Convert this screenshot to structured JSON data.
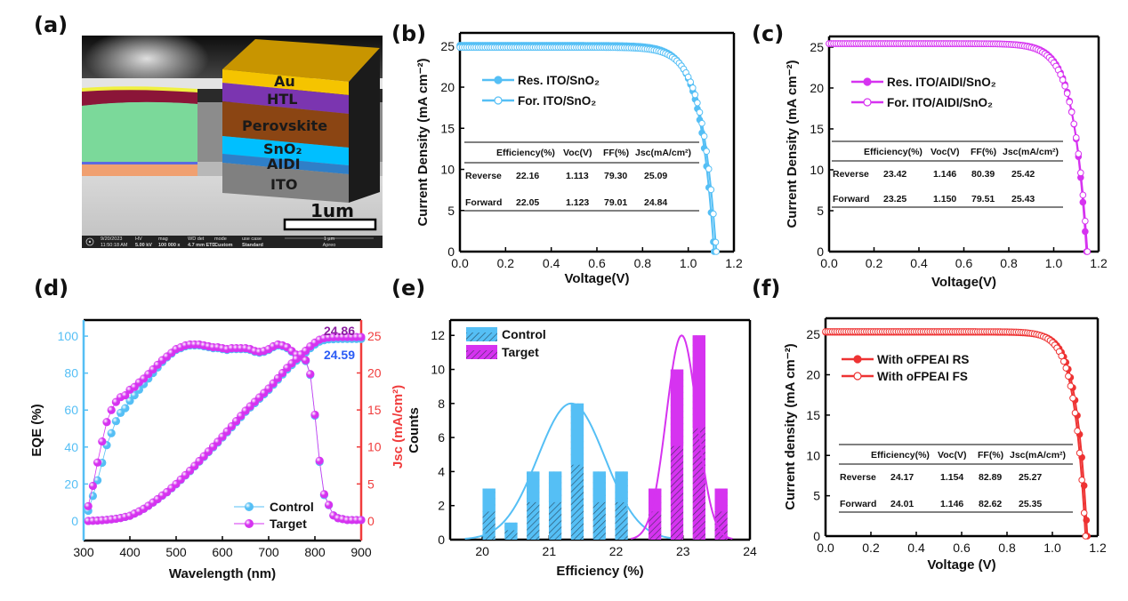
{
  "panel_labels": {
    "a": "(a)",
    "b": "(b)",
    "c": "(c)",
    "d": "(d)",
    "e": "(e)",
    "f": "(f)"
  },
  "panel_a": {
    "layers": [
      "Au",
      "HTL",
      "Perovskite",
      "SnO₂",
      "AIDI",
      "ITO"
    ],
    "layer_colors": [
      "#F5B800",
      "#7B35B0",
      "#8B4513",
      "#00BFFF",
      "#2F7FC8",
      "#808080"
    ],
    "scale_bar": "1um",
    "info_bar": {
      "date": "9/20/2023",
      "time": "11:50:18 AM",
      "hv_label": "HV",
      "hv": "5.00 kV",
      "mag_label": "mag",
      "mag": "100 000 x",
      "wd_label": "WD det",
      "wd": "4.7 mm ETD",
      "mode_label": "mode",
      "mode": "Custom",
      "use_case_label": "use case",
      "use_case": "Standard",
      "scale": "1 µm",
      "instrument": "Apreo"
    }
  },
  "colors": {
    "control": "#55BFF5",
    "target": "#D633F0",
    "oFPEAI": "#EE3333",
    "jsc_axis": "#F03C3C",
    "label_target": "#8B1FA0",
    "label_control": "#2A5BF5"
  },
  "chart_data": [
    {
      "panel": "b",
      "type": "line",
      "xlabel": "Voltage(V)",
      "ylabel": "Current Density (mA cm⁻²)",
      "xlim": [
        0,
        1.2
      ],
      "ylim": [
        0,
        26.6
      ],
      "xticks": [
        0,
        0.2,
        0.4,
        0.6,
        0.8,
        1.0,
        1.2
      ],
      "xtick_labels": [
        "0.0",
        "0.2",
        "0.4",
        "0.6",
        "0.8",
        "1.0",
        "1.2"
      ],
      "yticks": [
        0,
        5,
        10,
        15,
        20,
        25
      ],
      "ytick_labels": [
        "0",
        "5",
        "10",
        "15",
        "20",
        "25"
      ],
      "color": "#55BFF5",
      "series": [
        {
          "name": "Res. ITO/SnO₂",
          "marker": "filled",
          "jsc": 25.09,
          "voc": 1.113,
          "ff": 79.3
        },
        {
          "name": "For. ITO/SnO₂",
          "marker": "open",
          "jsc": 24.84,
          "voc": 1.123,
          "ff": 79.01
        }
      ],
      "table": {
        "headers": [
          "Efficiency(%)",
          "Voc(V)",
          "FF(%)",
          "Jsc(mA/cm²)"
        ],
        "rows": [
          [
            "Reverse",
            "22.16",
            "1.113",
            "79.30",
            "25.09"
          ],
          [
            "Forward",
            "22.05",
            "1.123",
            "79.01",
            "24.84"
          ]
        ]
      }
    },
    {
      "panel": "c",
      "type": "line",
      "xlabel": "Voltage(V)",
      "ylabel": "Current Density (mA cm⁻²)",
      "xlim": [
        0,
        1.2
      ],
      "ylim": [
        0,
        26.3
      ],
      "xticks": [
        0,
        0.2,
        0.4,
        0.6,
        0.8,
        1.0,
        1.2
      ],
      "xtick_labels": [
        "0.0",
        "0.2",
        "0.4",
        "0.6",
        "0.8",
        "1.0",
        "1.2"
      ],
      "yticks": [
        0,
        5,
        10,
        15,
        20,
        25
      ],
      "ytick_labels": [
        "0",
        "5",
        "10",
        "15",
        "20",
        "25"
      ],
      "color": "#D633F0",
      "series": [
        {
          "name": "Res. ITO/AIDI/SnO₂",
          "marker": "filled",
          "jsc": 25.42,
          "voc": 1.146,
          "ff": 80.39
        },
        {
          "name": "For. ITO/AIDI/SnO₂",
          "marker": "open",
          "jsc": 25.43,
          "voc": 1.15,
          "ff": 79.51
        }
      ],
      "table": {
        "headers": [
          "Efficiency(%)",
          "Voc(V)",
          "FF(%)",
          "Jsc(mA/cm²)"
        ],
        "rows": [
          [
            "Reverse",
            "23.42",
            "1.146",
            "80.39",
            "25.42"
          ],
          [
            "Forward",
            "23.25",
            "1.150",
            "79.51",
            "25.43"
          ]
        ]
      }
    },
    {
      "panel": "d",
      "type": "scatter",
      "xlabel": "Wavelength (nm)",
      "ylabel": "EQE (%)",
      "y2label": "Jsc (mA/cm²)",
      "xlim": [
        300,
        900
      ],
      "ylim": [
        -10.6,
        108.7
      ],
      "y2lim": [
        -2.65,
        27.15
      ],
      "xticks": [
        300,
        400,
        500,
        600,
        700,
        800,
        900
      ],
      "xtick_labels": [
        "300",
        "400",
        "500",
        "600",
        "700",
        "800",
        "900"
      ],
      "yticks": [
        0,
        20,
        40,
        60,
        80,
        100
      ],
      "ytick_labels": [
        "0",
        "20",
        "40",
        "60",
        "80",
        "100"
      ],
      "y2ticks": [
        0,
        5,
        10,
        15,
        20,
        25
      ],
      "y2tick_labels": [
        "0",
        "5",
        "10",
        "15",
        "20",
        "25"
      ],
      "wavelength": [
        310,
        320,
        330,
        340,
        350,
        360,
        370,
        380,
        390,
        400,
        410,
        420,
        430,
        440,
        450,
        460,
        470,
        480,
        490,
        500,
        510,
        520,
        530,
        540,
        550,
        560,
        570,
        580,
        590,
        600,
        610,
        620,
        630,
        640,
        650,
        660,
        670,
        680,
        690,
        700,
        710,
        720,
        730,
        740,
        750,
        760,
        770,
        780,
        790,
        800,
        810,
        820,
        830,
        840,
        850,
        860,
        870,
        880,
        890,
        900
      ],
      "series": [
        {
          "name": "Control",
          "color": "#55BFF5",
          "eqe": [
            5.5,
            13.5,
            22,
            31.5,
            41,
            47.5,
            54,
            58.5,
            61,
            65,
            68,
            71,
            74,
            77,
            80,
            83,
            86,
            88.5,
            90.5,
            92.5,
            93.5,
            94.5,
            95,
            95,
            95,
            94.5,
            94,
            93.5,
            93.5,
            93,
            92.5,
            93,
            93,
            93,
            93,
            92.5,
            91.5,
            91,
            91.5,
            92.5,
            94,
            95,
            94.5,
            93.5,
            91.5,
            89.5,
            88.5,
            86.5,
            79,
            57,
            32,
            14,
            8.5,
            3,
            1.5,
            1,
            0.5,
            0.5,
            0.5,
            0.5
          ],
          "jsc": [
            0,
            0.02,
            0.05,
            0.1,
            0.15,
            0.22,
            0.3,
            0.4,
            0.54,
            0.69,
            0.99,
            1.29,
            1.63,
            2.03,
            2.47,
            2.92,
            3.41,
            3.86,
            4.4,
            4.95,
            5.54,
            6.13,
            6.73,
            7.37,
            8.01,
            8.65,
            9.3,
            9.94,
            10.58,
            11.28,
            11.97,
            12.66,
            13.35,
            14.04,
            14.74,
            15.33,
            15.92,
            16.52,
            17.11,
            17.7,
            18.4,
            19.09,
            19.78,
            20.47,
            21.07,
            21.66,
            22.25,
            22.75,
            23.34,
            23.84,
            24.23,
            24.43,
            24.53,
            24.57,
            24.59,
            24.59,
            24.59,
            24.59,
            24.59,
            24.59
          ]
        },
        {
          "name": "Target",
          "color": "#D633F0",
          "eqe": [
            8,
            19,
            31.6,
            43,
            53.5,
            60,
            64.4,
            67,
            68,
            71,
            72.5,
            75,
            77,
            79.5,
            82,
            84.5,
            87,
            89,
            91,
            93,
            94,
            95,
            95.5,
            95.5,
            95.5,
            95,
            94.5,
            94,
            94,
            93.5,
            93,
            93.5,
            93.5,
            93.5,
            93.5,
            93,
            92,
            91.5,
            92,
            93,
            94.5,
            95.5,
            95,
            94,
            92,
            90,
            89,
            87,
            79.5,
            57.5,
            32.6,
            14.5,
            8.7,
            3,
            1.5,
            1,
            0.5,
            0.5,
            0.5,
            0.5
          ],
          "jsc": [
            0,
            0.02,
            0.05,
            0.1,
            0.15,
            0.22,
            0.3,
            0.4,
            0.55,
            0.7,
            1.0,
            1.3,
            1.65,
            2.05,
            2.5,
            2.95,
            3.45,
            3.9,
            4.45,
            5.0,
            5.6,
            6.2,
            6.8,
            7.45,
            8.1,
            8.75,
            9.4,
            10.05,
            10.7,
            11.4,
            12.1,
            12.8,
            13.5,
            14.2,
            14.9,
            15.5,
            16.1,
            16.7,
            17.3,
            17.9,
            18.6,
            19.3,
            20.0,
            20.7,
            21.3,
            21.9,
            22.5,
            23.0,
            23.6,
            24.1,
            24.5,
            24.7,
            24.8,
            24.84,
            24.86,
            24.86,
            24.86,
            24.86,
            24.86,
            24.86
          ]
        }
      ],
      "annotations": {
        "target_jsc": "24.86",
        "control_jsc": "24.59"
      }
    },
    {
      "panel": "e",
      "type": "bar",
      "xlabel": "Efficiency (%)",
      "ylabel": "Counts",
      "xlim": [
        19.52,
        24
      ],
      "ylim": [
        0,
        12.9
      ],
      "xticks": [
        20,
        21,
        22,
        23,
        24
      ],
      "xtick_labels": [
        "20",
        "21",
        "22",
        "23",
        "24"
      ],
      "yticks": [
        0,
        2,
        4,
        6,
        8,
        10,
        12
      ],
      "ytick_labels": [
        "0",
        "2",
        "4",
        "6",
        "8",
        "10",
        "12"
      ],
      "bar_width": 0.19,
      "series": [
        {
          "name": "Control",
          "color": "#55BFF5",
          "centers": [
            20.1,
            20.43,
            20.76,
            21.09,
            21.42,
            21.75,
            22.08
          ],
          "counts": [
            3,
            1,
            4,
            4,
            8,
            4,
            4
          ],
          "fit": {
            "center": 21.33,
            "sigma": 0.5,
            "peak": 8
          }
        },
        {
          "name": "Target",
          "color": "#D633F0",
          "centers": [
            22.58,
            22.91,
            23.24,
            23.57
          ],
          "counts": [
            3,
            10,
            12,
            3
          ],
          "fit": {
            "center": 22.98,
            "sigma": 0.23,
            "peak": 12
          }
        }
      ]
    },
    {
      "panel": "f",
      "type": "line",
      "xlabel": "Voltage (V)",
      "ylabel": "Current density (mA cm⁻²)",
      "xlim": [
        0,
        1.2
      ],
      "ylim": [
        0,
        27
      ],
      "xticks": [
        0,
        0.2,
        0.4,
        0.6,
        0.8,
        1.0,
        1.2
      ],
      "xtick_labels": [
        "0.0",
        "0.2",
        "0.4",
        "0.6",
        "0.8",
        "1.0",
        "1.2"
      ],
      "yticks": [
        0,
        5,
        10,
        15,
        20,
        25
      ],
      "ytick_labels": [
        "0",
        "5",
        "10",
        "15",
        "20",
        "25"
      ],
      "color": "#EE3333",
      "series": [
        {
          "name": "With oFPEAI RS",
          "marker": "filled",
          "jsc": 25.27,
          "voc": 1.154,
          "ff": 82.89
        },
        {
          "name": "With oFPEAI FS",
          "marker": "open",
          "jsc": 25.35,
          "voc": 1.146,
          "ff": 82.62
        }
      ],
      "table": {
        "headers": [
          "Efficiency(%)",
          "Voc(V)",
          "FF(%)",
          "Jsc(mA/cm²)"
        ],
        "rows": [
          [
            "Reverse",
            "24.17",
            "1.154",
            "82.89",
            "25.27"
          ],
          [
            "Forward",
            "24.01",
            "1.146",
            "82.62",
            "25.35"
          ]
        ]
      }
    }
  ]
}
